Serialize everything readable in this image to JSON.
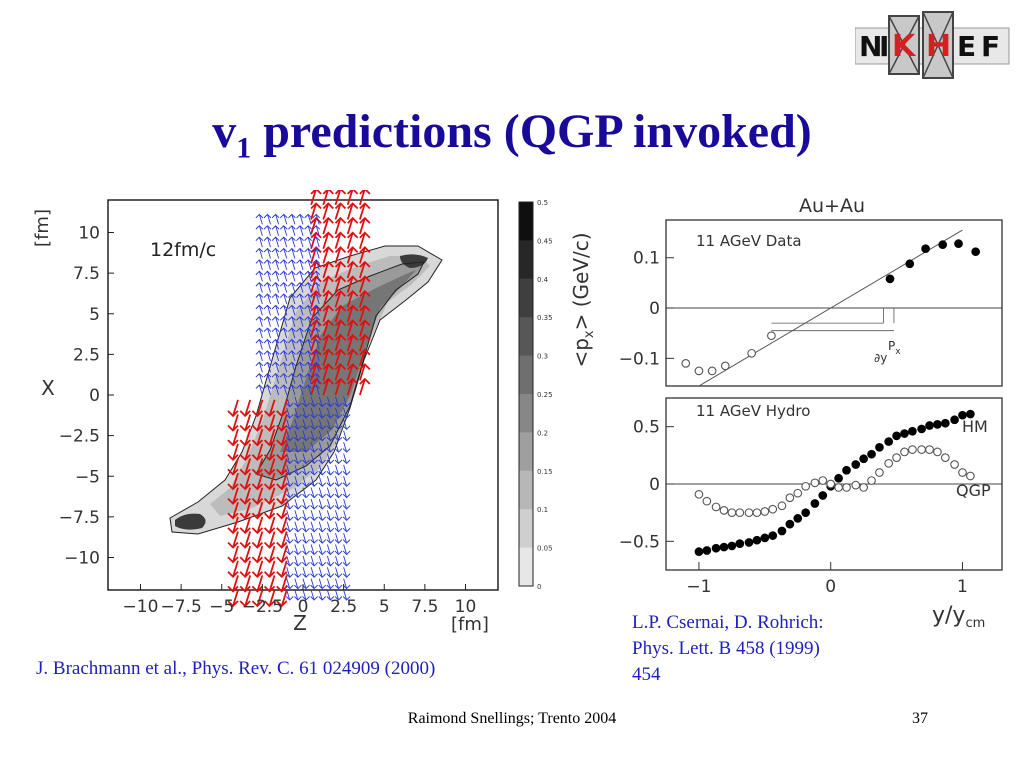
{
  "slide": {
    "title_main": "v",
    "title_sub": "1",
    "title_rest": " predictions (QGP invoked)",
    "logo_text": [
      "N",
      "I",
      "K",
      "H",
      "E",
      "F"
    ],
    "footer": "Raimond Snellings; Trento 2004",
    "slide_number": "37",
    "ref_left": "J. Brachmann et al., Phys. Rev. C. 61 024909 (2000)",
    "ref_right_lines": [
      "L.P. Csernai, D. Rohrich:",
      "Phys. Lett. B 458 (1999)",
      "454"
    ],
    "colors": {
      "title": "#1a0a9a",
      "reference": "#2020c0",
      "logo_red": "#d42020",
      "arrows_red": "#e01010",
      "arrows_blue": "#2a3ad8"
    }
  },
  "chart_data": [
    {
      "type": "heatmap",
      "annotation": "12fm/c",
      "xlabel": "Z",
      "xunit": "[fm]",
      "ylabel": "X",
      "yunit": "[fm]",
      "xticks": [
        "−10",
        "−7.5",
        "−5",
        "−2.5",
        "0",
        "2.5",
        "5",
        "7.5",
        "10"
      ],
      "xtick_values": [
        -10,
        -7.5,
        -5,
        -2.5,
        0,
        2.5,
        5,
        7.5,
        10
      ],
      "yticks": [
        "10",
        "7.5",
        "5",
        "2.5",
        "0",
        "−2.5",
        "−5",
        "−7.5",
        "−10"
      ],
      "ytick_values": [
        10,
        7.5,
        5,
        2.5,
        0,
        -2.5,
        -5,
        -7.5,
        -10
      ],
      "xlim": [
        -12,
        12
      ],
      "ylim": [
        -12,
        12
      ],
      "colorbar": {
        "label": "<p",
        "label_sub": "x",
        "label_rest": "> (GeV/c)",
        "ticks": [
          "0.5",
          "0.45",
          "0.4",
          "0.35",
          "0.3",
          "0.25",
          "0.2",
          "0.15",
          "0.1",
          "0.05",
          "0"
        ],
        "tick_values": [
          0.5,
          0.45,
          0.4,
          0.35,
          0.3,
          0.25,
          0.2,
          0.15,
          0.1,
          0.05,
          0
        ]
      },
      "flow_arrows": [
        {
          "color": "red",
          "z_range": [
            0.5,
            3.5
          ],
          "x_range": [
            0,
            12
          ]
        },
        {
          "color": "red",
          "z_range": [
            -4,
            -1
          ],
          "x_range": [
            -12,
            0
          ]
        },
        {
          "color": "blue",
          "z_range": [
            -2.5,
            1
          ],
          "x_range": [
            0,
            11
          ]
        },
        {
          "color": "blue",
          "z_range": [
            -1,
            2.5
          ],
          "x_range": [
            -12,
            0
          ]
        }
      ]
    },
    {
      "type": "scatter",
      "panel_title": "Au+Au",
      "xlabel": "y/y",
      "xlabel_sub": "cm",
      "xticks": [
        "−1",
        "0",
        "1"
      ],
      "xtick_values": [
        -1,
        0,
        1
      ],
      "xlim": [
        -1.25,
        1.3
      ],
      "panels": [
        {
          "label": "11 AGeV Data",
          "ylim": [
            -0.155,
            0.175
          ],
          "yticks": [
            "0.1",
            "0",
            "−0.1"
          ],
          "ytick_values": [
            0.1,
            0,
            -0.1
          ],
          "fit_line": {
            "x": [
              -1.0,
              1.0
            ],
            "y": [
              -0.155,
              0.155
            ]
          },
          "annotations": [
            "P",
            "x",
            "∂y"
          ],
          "series": [
            {
              "marker": "open",
              "x": [
                -1.1,
                -1.0,
                -0.9,
                -0.8,
                -0.6,
                -0.45
              ],
              "y": [
                -0.11,
                -0.125,
                -0.125,
                -0.115,
                -0.09,
                -0.055
              ]
            },
            {
              "marker": "filled",
              "x": [
                0.45,
                0.6,
                0.72,
                0.85,
                0.97,
                1.1
              ],
              "y": [
                0.058,
                0.088,
                0.118,
                0.126,
                0.128,
                0.112
              ]
            }
          ]
        },
        {
          "label": "11 AGeV Hydro",
          "ylim": [
            -0.75,
            0.75
          ],
          "yticks": [
            "0.5",
            "0",
            "−0.5"
          ],
          "ytick_values": [
            0.5,
            0,
            -0.5
          ],
          "series": [
            {
              "name": "HM",
              "marker": "filled",
              "x": [
                -1.0,
                -0.94,
                -0.87,
                -0.81,
                -0.75,
                -0.69,
                -0.62,
                -0.56,
                -0.5,
                -0.44,
                -0.37,
                -0.31,
                -0.25,
                -0.19,
                -0.12,
                -0.06,
                0.0,
                0.06,
                0.12,
                0.19,
                0.25,
                0.31,
                0.37,
                0.44,
                0.5,
                0.56,
                0.62,
                0.69,
                0.75,
                0.81,
                0.87,
                0.94,
                1.0,
                1.06
              ],
              "y": [
                -0.59,
                -0.58,
                -0.56,
                -0.55,
                -0.54,
                -0.52,
                -0.51,
                -0.49,
                -0.47,
                -0.45,
                -0.41,
                -0.35,
                -0.3,
                -0.25,
                -0.17,
                -0.1,
                -0.02,
                0.05,
                0.12,
                0.17,
                0.22,
                0.26,
                0.32,
                0.37,
                0.42,
                0.44,
                0.46,
                0.48,
                0.51,
                0.52,
                0.53,
                0.56,
                0.6,
                0.61
              ]
            },
            {
              "name": "QGP",
              "marker": "open",
              "x": [
                -1.0,
                -0.94,
                -0.87,
                -0.81,
                -0.75,
                -0.69,
                -0.62,
                -0.56,
                -0.5,
                -0.44,
                -0.37,
                -0.31,
                -0.25,
                -0.19,
                -0.12,
                -0.06,
                0.0,
                0.06,
                0.12,
                0.19,
                0.25,
                0.31,
                0.37,
                0.44,
                0.5,
                0.56,
                0.62,
                0.69,
                0.75,
                0.81,
                0.87,
                0.94,
                1.0,
                1.06
              ],
              "y": [
                -0.09,
                -0.15,
                -0.2,
                -0.23,
                -0.25,
                -0.25,
                -0.25,
                -0.25,
                -0.24,
                -0.22,
                -0.19,
                -0.12,
                -0.08,
                -0.02,
                0.01,
                0.03,
                0.0,
                -0.03,
                -0.03,
                -0.01,
                -0.03,
                0.03,
                0.1,
                0.18,
                0.23,
                0.28,
                0.3,
                0.3,
                0.3,
                0.28,
                0.23,
                0.17,
                0.1,
                0.07
              ]
            }
          ]
        }
      ]
    }
  ]
}
